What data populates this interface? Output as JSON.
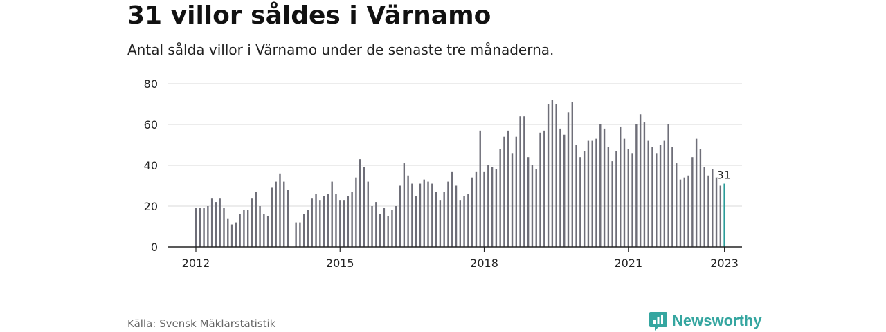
{
  "header": {
    "title": "31 villor såldes i Värnamo",
    "subtitle": "Antal sålda villor i Värnamo under de senaste tre månaderna."
  },
  "footer": {
    "source": "Källa: Svensk Mäklarstatistik",
    "brand": "Newsworthy"
  },
  "colors": {
    "bar": "#6e6e78",
    "highlight": "#2b9c99",
    "grid": "#d9d9d9",
    "brand": "#35a6a0"
  },
  "chart_data": {
    "type": "bar",
    "title": "31 villor såldes i Värnamo",
    "subtitle": "Antal sålda villor i Värnamo under de senaste tre månaderna.",
    "ylim": [
      0,
      80
    ],
    "yticks": [
      0,
      20,
      40,
      60,
      80
    ],
    "xticks": [
      "2012",
      "2015",
      "2018",
      "2021",
      "2023"
    ],
    "grid": true,
    "highlight_label": "31",
    "series": [
      {
        "start": "2012-01",
        "values": [
          19,
          19,
          19,
          20,
          24,
          22,
          24,
          19,
          14,
          11,
          12,
          16,
          18,
          18,
          24,
          27,
          20,
          16,
          15,
          29,
          32,
          36,
          32,
          28
        ]
      },
      {
        "start": "2014-02",
        "values": [
          12,
          12,
          16,
          18,
          24,
          26,
          23,
          25,
          26,
          32,
          26,
          23,
          23,
          25,
          27,
          34,
          43,
          39,
          32,
          20,
          22,
          16,
          19,
          15,
          18,
          20,
          30,
          41,
          35,
          31,
          25,
          31,
          33,
          32,
          31,
          27,
          23,
          27,
          32,
          37,
          30,
          23,
          25,
          26,
          34,
          37,
          57,
          37,
          40,
          39,
          38,
          48,
          54,
          57,
          46,
          54,
          64,
          64,
          44,
          40,
          38,
          56,
          57,
          70,
          72,
          70,
          58,
          55,
          66,
          71,
          50,
          44,
          47,
          52,
          52,
          53,
          60,
          58,
          49,
          42,
          47,
          59,
          53,
          48,
          46,
          60,
          65,
          61,
          52,
          49,
          46,
          50,
          52,
          60,
          49,
          41,
          33,
          34,
          35,
          44,
          53,
          48,
          39,
          35,
          38,
          34,
          30,
          31
        ]
      }
    ]
  }
}
